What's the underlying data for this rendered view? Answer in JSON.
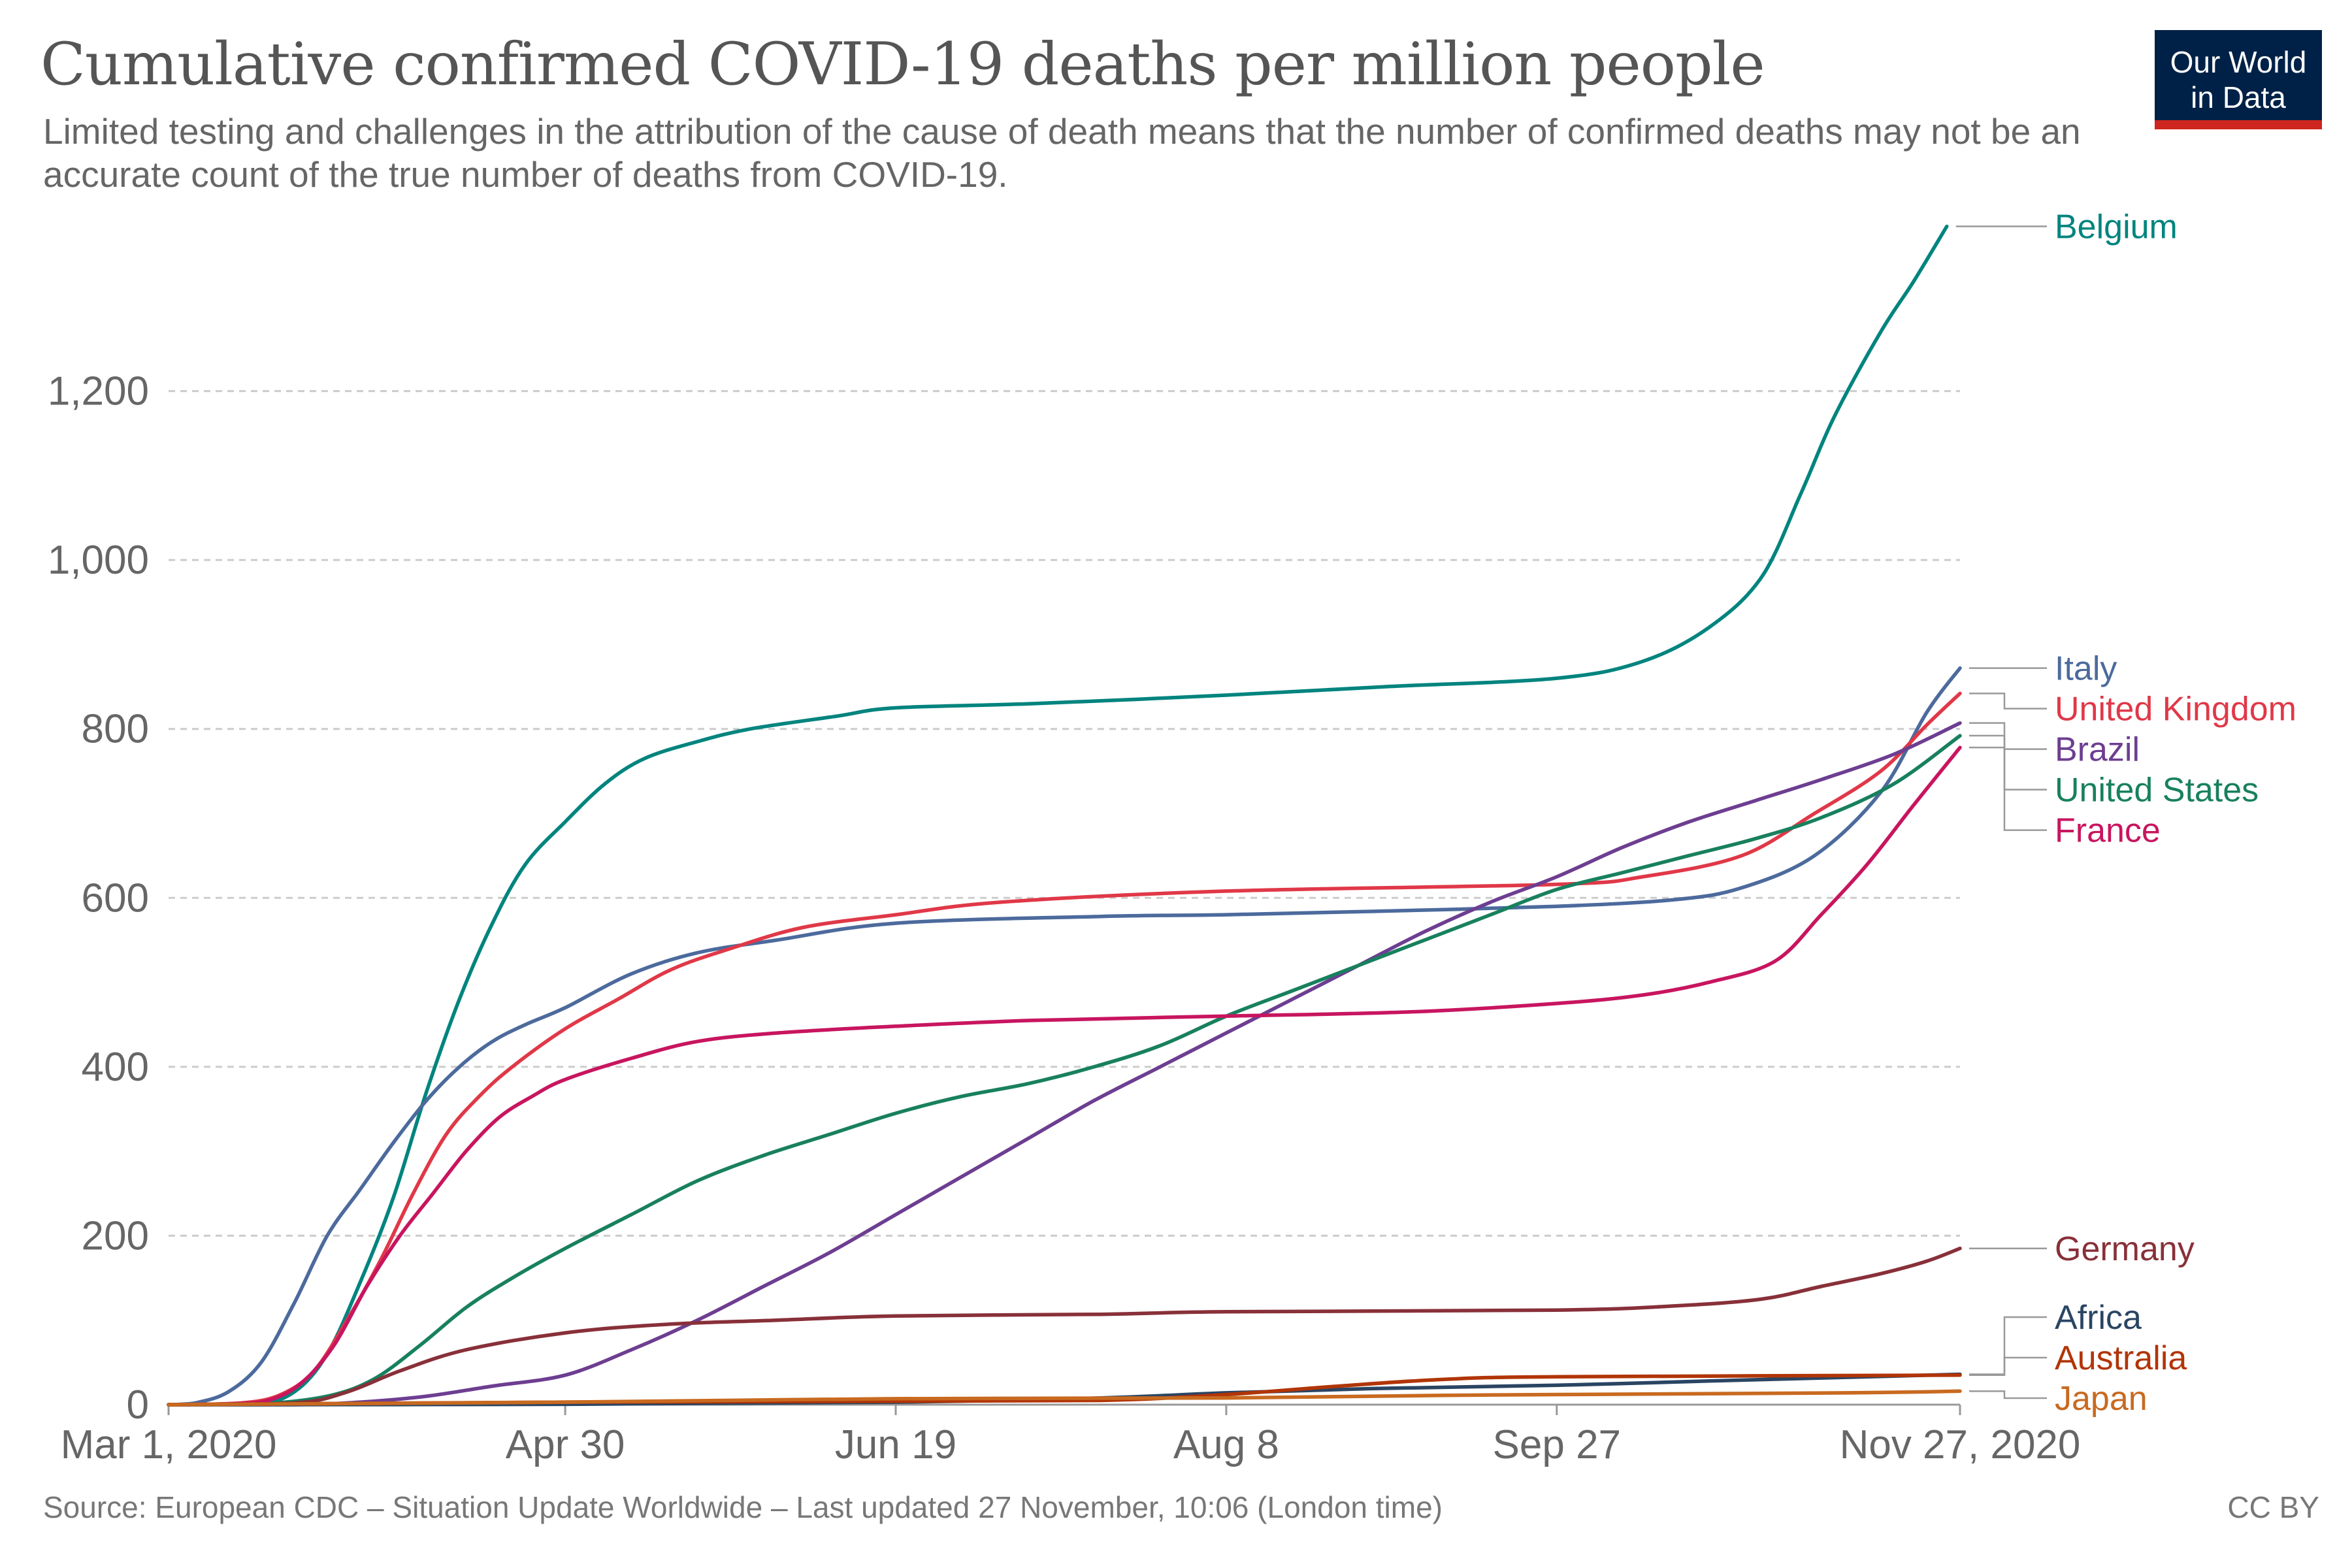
{
  "header": {
    "title": "Cumulative confirmed COVID-19 deaths per million people",
    "subtitle": "Limited testing and challenges in the attribution of the cause of death means that the number of confirmed deaths may not be an accurate count of the true number of deaths from COVID-19."
  },
  "logo": {
    "line1": "Our World",
    "line2": "in Data",
    "colors": {
      "background": "#002147",
      "accent": "#ce261e"
    }
  },
  "footer": {
    "source": "Source: European CDC – Situation Update Worldwide – Last updated 27 November, 10:06 (London time)",
    "license": "CC BY"
  },
  "chart_data": {
    "type": "line",
    "title": "Cumulative confirmed COVID-19 deaths per million people",
    "xlabel": "",
    "ylabel": "",
    "x_type": "date",
    "xlim": [
      "2020-03-01",
      "2020-11-27"
    ],
    "ylim": [
      0,
      1400
    ],
    "x_ticks": [
      "Mar 1, 2020",
      "Apr 30",
      "Jun 19",
      "Aug 8",
      "Sep 27",
      "Nov 27, 2020"
    ],
    "y_ticks": [
      "0",
      "200",
      "400",
      "600",
      "800",
      "1,000",
      "1,200"
    ],
    "y_tick_values": [
      0,
      200,
      400,
      600,
      800,
      1000,
      1200
    ],
    "x_tick_dates": [
      "2020-03-01",
      "2020-04-30",
      "2020-06-19",
      "2020-08-08",
      "2020-09-27",
      "2020-11-27"
    ],
    "grid": "horizontal dashed",
    "legend": "right (labels at line ends)",
    "series": [
      {
        "name": "Belgium",
        "color": "#00847e",
        "points": [
          [
            "2020-03-01",
            0
          ],
          [
            "2020-03-14",
            1
          ],
          [
            "2020-03-20",
            15
          ],
          [
            "2020-03-25",
            60
          ],
          [
            "2020-03-30",
            145
          ],
          [
            "2020-04-04",
            245
          ],
          [
            "2020-04-09",
            370
          ],
          [
            "2020-04-14",
            480
          ],
          [
            "2020-04-19",
            570
          ],
          [
            "2020-04-24",
            640
          ],
          [
            "2020-04-30",
            690
          ],
          [
            "2020-05-06",
            735
          ],
          [
            "2020-05-12",
            765
          ],
          [
            "2020-05-20",
            785
          ],
          [
            "2020-05-28",
            800
          ],
          [
            "2020-06-10",
            815
          ],
          [
            "2020-06-19",
            825
          ],
          [
            "2020-07-10",
            830
          ],
          [
            "2020-08-08",
            840
          ],
          [
            "2020-09-01",
            850
          ],
          [
            "2020-09-27",
            860
          ],
          [
            "2020-10-10",
            880
          ],
          [
            "2020-10-20",
            920
          ],
          [
            "2020-10-28",
            980
          ],
          [
            "2020-11-03",
            1080
          ],
          [
            "2020-11-08",
            1170
          ],
          [
            "2020-11-15",
            1270
          ],
          [
            "2020-11-20",
            1330
          ],
          [
            "2020-11-25",
            1395
          ]
        ]
      },
      {
        "name": "Italy",
        "color": "#4c6a9c",
        "points": [
          [
            "2020-03-01",
            0
          ],
          [
            "2020-03-05",
            2
          ],
          [
            "2020-03-10",
            15
          ],
          [
            "2020-03-15",
            50
          ],
          [
            "2020-03-20",
            120
          ],
          [
            "2020-03-25",
            200
          ],
          [
            "2020-03-30",
            255
          ],
          [
            "2020-04-04",
            310
          ],
          [
            "2020-04-09",
            360
          ],
          [
            "2020-04-14",
            400
          ],
          [
            "2020-04-19",
            430
          ],
          [
            "2020-04-24",
            450
          ],
          [
            "2020-04-30",
            470
          ],
          [
            "2020-05-10",
            510
          ],
          [
            "2020-05-20",
            535
          ],
          [
            "2020-06-01",
            550
          ],
          [
            "2020-06-19",
            570
          ],
          [
            "2020-07-20",
            578
          ],
          [
            "2020-08-08",
            580
          ],
          [
            "2020-08-30",
            584
          ],
          [
            "2020-09-27",
            590
          ],
          [
            "2020-10-15",
            598
          ],
          [
            "2020-10-25",
            612
          ],
          [
            "2020-11-05",
            650
          ],
          [
            "2020-11-15",
            725
          ],
          [
            "2020-11-22",
            820
          ],
          [
            "2020-11-27",
            872
          ]
        ]
      },
      {
        "name": "United Kingdom",
        "color": "#e03848",
        "points": [
          [
            "2020-03-01",
            0
          ],
          [
            "2020-03-12",
            2
          ],
          [
            "2020-03-18",
            12
          ],
          [
            "2020-03-23",
            40
          ],
          [
            "2020-03-28",
            100
          ],
          [
            "2020-04-02",
            170
          ],
          [
            "2020-04-07",
            250
          ],
          [
            "2020-04-12",
            320
          ],
          [
            "2020-04-17",
            365
          ],
          [
            "2020-04-22",
            400
          ],
          [
            "2020-04-30",
            445
          ],
          [
            "2020-05-08",
            480
          ],
          [
            "2020-05-16",
            515
          ],
          [
            "2020-05-25",
            540
          ],
          [
            "2020-06-05",
            565
          ],
          [
            "2020-06-19",
            580
          ],
          [
            "2020-07-05",
            595
          ],
          [
            "2020-08-08",
            608
          ],
          [
            "2020-09-27",
            616
          ],
          [
            "2020-10-10",
            625
          ],
          [
            "2020-10-25",
            650
          ],
          [
            "2020-11-05",
            700
          ],
          [
            "2020-11-15",
            750
          ],
          [
            "2020-11-22",
            805
          ],
          [
            "2020-11-27",
            842
          ]
        ]
      },
      {
        "name": "Brazil",
        "color": "#6d3e91",
        "points": [
          [
            "2020-03-01",
            0
          ],
          [
            "2020-03-20",
            0
          ],
          [
            "2020-03-30",
            3
          ],
          [
            "2020-04-09",
            10
          ],
          [
            "2020-04-19",
            22
          ],
          [
            "2020-04-30",
            35
          ],
          [
            "2020-05-10",
            65
          ],
          [
            "2020-05-20",
            100
          ],
          [
            "2020-05-30",
            140
          ],
          [
            "2020-06-09",
            180
          ],
          [
            "2020-06-19",
            225
          ],
          [
            "2020-06-29",
            270
          ],
          [
            "2020-07-09",
            315
          ],
          [
            "2020-07-19",
            360
          ],
          [
            "2020-07-29",
            400
          ],
          [
            "2020-08-08",
            440
          ],
          [
            "2020-08-18",
            480
          ],
          [
            "2020-08-28",
            520
          ],
          [
            "2020-09-07",
            560
          ],
          [
            "2020-09-17",
            595
          ],
          [
            "2020-09-27",
            625
          ],
          [
            "2020-10-07",
            660
          ],
          [
            "2020-10-17",
            690
          ],
          [
            "2020-10-27",
            715
          ],
          [
            "2020-11-06",
            740
          ],
          [
            "2020-11-17",
            770
          ],
          [
            "2020-11-27",
            807
          ]
        ]
      },
      {
        "name": "United States",
        "color": "#18805e",
        "points": [
          [
            "2020-03-01",
            0
          ],
          [
            "2020-03-15",
            1
          ],
          [
            "2020-03-25",
            10
          ],
          [
            "2020-04-01",
            30
          ],
          [
            "2020-04-08",
            70
          ],
          [
            "2020-04-15",
            115
          ],
          [
            "2020-04-22",
            150
          ],
          [
            "2020-04-30",
            185
          ],
          [
            "2020-05-10",
            225
          ],
          [
            "2020-05-20",
            265
          ],
          [
            "2020-05-30",
            295
          ],
          [
            "2020-06-09",
            320
          ],
          [
            "2020-06-19",
            345
          ],
          [
            "2020-06-29",
            365
          ],
          [
            "2020-07-09",
            380
          ],
          [
            "2020-07-19",
            400
          ],
          [
            "2020-07-29",
            425
          ],
          [
            "2020-08-08",
            460
          ],
          [
            "2020-08-18",
            490
          ],
          [
            "2020-08-28",
            520
          ],
          [
            "2020-09-07",
            550
          ],
          [
            "2020-09-17",
            580
          ],
          [
            "2020-09-27",
            610
          ],
          [
            "2020-10-07",
            630
          ],
          [
            "2020-10-17",
            650
          ],
          [
            "2020-10-27",
            670
          ],
          [
            "2020-11-06",
            695
          ],
          [
            "2020-11-17",
            735
          ],
          [
            "2020-11-27",
            792
          ]
        ]
      },
      {
        "name": "France",
        "color": "#c8155f",
        "points": [
          [
            "2020-03-01",
            0
          ],
          [
            "2020-03-10",
            1
          ],
          [
            "2020-03-16",
            5
          ],
          [
            "2020-03-21",
            25
          ],
          [
            "2020-03-26",
            70
          ],
          [
            "2020-03-31",
            140
          ],
          [
            "2020-04-05",
            200
          ],
          [
            "2020-04-10",
            250
          ],
          [
            "2020-04-15",
            300
          ],
          [
            "2020-04-20",
            340
          ],
          [
            "2020-04-25",
            365
          ],
          [
            "2020-04-30",
            385
          ],
          [
            "2020-05-10",
            410
          ],
          [
            "2020-05-20",
            430
          ],
          [
            "2020-06-01",
            440
          ],
          [
            "2020-06-19",
            448
          ],
          [
            "2020-07-10",
            455
          ],
          [
            "2020-08-08",
            460
          ],
          [
            "2020-09-05",
            465
          ],
          [
            "2020-09-27",
            475
          ],
          [
            "2020-10-10",
            485
          ],
          [
            "2020-10-20",
            500
          ],
          [
            "2020-10-30",
            525
          ],
          [
            "2020-11-06",
            580
          ],
          [
            "2020-11-13",
            640
          ],
          [
            "2020-11-20",
            710
          ],
          [
            "2020-11-27",
            778
          ]
        ]
      },
      {
        "name": "Germany",
        "color": "#883039",
        "points": [
          [
            "2020-03-01",
            0
          ],
          [
            "2020-03-20",
            2
          ],
          [
            "2020-03-28",
            15
          ],
          [
            "2020-04-05",
            40
          ],
          [
            "2020-04-15",
            65
          ],
          [
            "2020-04-30",
            85
          ],
          [
            "2020-05-15",
            95
          ],
          [
            "2020-06-01",
            100
          ],
          [
            "2020-06-19",
            105
          ],
          [
            "2020-07-20",
            107
          ],
          [
            "2020-08-08",
            110
          ],
          [
            "2020-09-27",
            112
          ],
          [
            "2020-10-15",
            117
          ],
          [
            "2020-10-28",
            125
          ],
          [
            "2020-11-06",
            140
          ],
          [
            "2020-11-15",
            155
          ],
          [
            "2020-11-22",
            170
          ],
          [
            "2020-11-27",
            185
          ]
        ]
      },
      {
        "name": "Africa",
        "color": "#2a4563",
        "points": [
          [
            "2020-03-01",
            0
          ],
          [
            "2020-04-30",
            0.5
          ],
          [
            "2020-06-19",
            3
          ],
          [
            "2020-07-20",
            8
          ],
          [
            "2020-08-08",
            14
          ],
          [
            "2020-08-30",
            19
          ],
          [
            "2020-09-27",
            23
          ],
          [
            "2020-10-20",
            28
          ],
          [
            "2020-11-27",
            36
          ]
        ]
      },
      {
        "name": "Australia",
        "color": "#b13507",
        "points": [
          [
            "2020-03-01",
            0
          ],
          [
            "2020-04-30",
            3
          ],
          [
            "2020-06-19",
            4
          ],
          [
            "2020-07-20",
            5
          ],
          [
            "2020-08-08",
            12
          ],
          [
            "2020-08-25",
            22
          ],
          [
            "2020-09-10",
            30
          ],
          [
            "2020-09-27",
            33
          ],
          [
            "2020-11-27",
            35
          ]
        ]
      },
      {
        "name": "Japan",
        "color": "#c86a20",
        "points": [
          [
            "2020-03-01",
            0
          ],
          [
            "2020-04-30",
            3
          ],
          [
            "2020-06-19",
            7
          ],
          [
            "2020-08-08",
            8
          ],
          [
            "2020-09-10",
            11
          ],
          [
            "2020-09-27",
            12
          ],
          [
            "2020-11-10",
            14
          ],
          [
            "2020-11-27",
            16
          ]
        ]
      }
    ]
  }
}
